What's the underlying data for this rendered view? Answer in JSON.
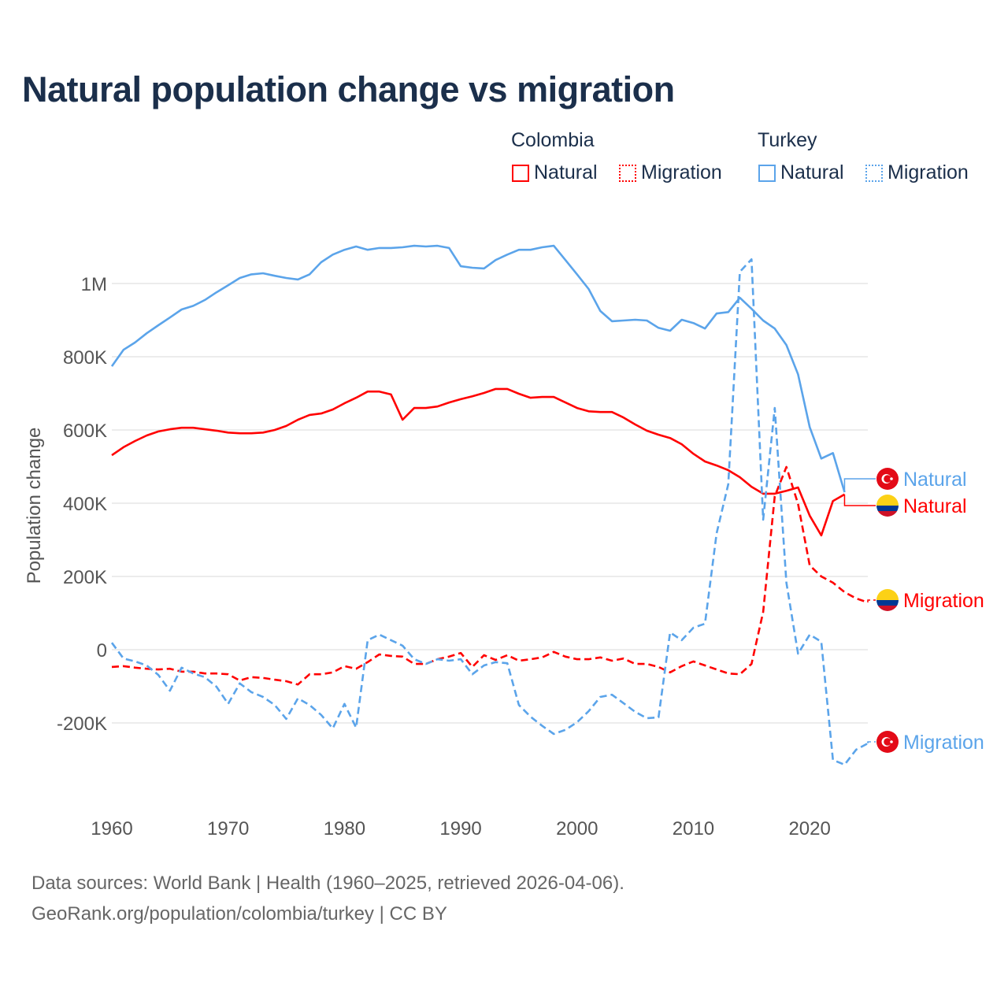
{
  "title": "Natural population change vs migration",
  "legend": {
    "groups": [
      {
        "name": "Colombia",
        "items": [
          {
            "label": "Natural",
            "style": "solid"
          },
          {
            "label": "Migration",
            "style": "dotted"
          }
        ],
        "color": "#ff0000"
      },
      {
        "name": "Turkey",
        "items": [
          {
            "label": "Natural",
            "style": "solid"
          },
          {
            "label": "Migration",
            "style": "dotted"
          }
        ],
        "color": "#5ba4ea"
      }
    ]
  },
  "footer": {
    "line1": "Data sources: World Bank | Health (1960–2025, retrieved 2026-04-06).",
    "line2": "GeoRank.org/population/colombia/turkey | CC BY"
  },
  "chart_data": {
    "type": "line",
    "title": "Natural population change vs migration",
    "xlabel": "",
    "ylabel": "Population change",
    "xlim": [
      1960,
      2025
    ],
    "ylim": [
      -400000,
      1150000
    ],
    "x_ticks": [
      1960,
      1970,
      1980,
      1990,
      2000,
      2010,
      2020
    ],
    "x_tick_labels": [
      "1960",
      "1970",
      "1980",
      "1990",
      "2000",
      "2010",
      "2020"
    ],
    "y_ticks": [
      -200000,
      0,
      200000,
      400000,
      600000,
      800000,
      1000000
    ],
    "y_tick_labels": [
      "-200K",
      "0",
      "200K",
      "400K",
      "600K",
      "800K",
      "1M"
    ],
    "grid": true,
    "legend_position": "top-right",
    "series": [
      {
        "name": "Turkey Natural",
        "country": "Turkey",
        "label": "Natural",
        "color": "#5ba4ea",
        "dash": false,
        "flag": "turkey",
        "start_year": 1960,
        "values": [
          774000,
          819000,
          839000,
          864000,
          886000,
          907000,
          929000,
          939000,
          955000,
          976000,
          995000,
          1015000,
          1025000,
          1028000,
          1021000,
          1015000,
          1011000,
          1025000,
          1058000,
          1079000,
          1092000,
          1101000,
          1092000,
          1097000,
          1097000,
          1099000,
          1103000,
          1101000,
          1103000,
          1097000,
          1047000,
          1043000,
          1041000,
          1064000,
          1079000,
          1092000,
          1092000,
          1099000,
          1103000,
          1064000,
          1025000,
          985000,
          925000,
          897000,
          899000,
          901000,
          899000,
          879000,
          871000,
          901000,
          892000,
          877000,
          918000,
          922000,
          961000,
          931000,
          899000,
          877000,
          832000,
          752000,
          608000,
          522000,
          537000,
          430000
        ]
      },
      {
        "name": "Colombia Natural",
        "country": "Colombia",
        "label": "Natural",
        "color": "#ff0000",
        "dash": false,
        "flag": "colombia",
        "start_year": 1960,
        "values": [
          531000,
          553000,
          570000,
          585000,
          596000,
          602000,
          606000,
          606000,
          602000,
          598000,
          593000,
          591000,
          591000,
          593000,
          600000,
          611000,
          628000,
          641000,
          645000,
          656000,
          673000,
          688000,
          705000,
          705000,
          697000,
          628000,
          660000,
          660000,
          664000,
          675000,
          684000,
          692000,
          701000,
          712000,
          712000,
          699000,
          688000,
          690000,
          690000,
          675000,
          660000,
          651000,
          649000,
          649000,
          634000,
          615000,
          598000,
          587000,
          578000,
          561000,
          535000,
          514000,
          503000,
          490000,
          471000,
          445000,
          426000,
          426000,
          434000,
          443000,
          366000,
          312000,
          406000,
          424000
        ]
      },
      {
        "name": "Colombia Migration",
        "country": "Colombia",
        "label": "Migration",
        "color": "#ff0000",
        "dash": true,
        "flag": "colombia",
        "start_year": 1960,
        "values": [
          -47000,
          -45000,
          -49000,
          -52000,
          -54000,
          -52000,
          -60000,
          -60000,
          -65000,
          -65000,
          -67000,
          -84000,
          -75000,
          -77000,
          -82000,
          -86000,
          -95000,
          -67000,
          -67000,
          -62000,
          -45000,
          -52000,
          -34000,
          -13000,
          -17000,
          -19000,
          -39000,
          -39000,
          -26000,
          -19000,
          -9000,
          -47000,
          -15000,
          -28000,
          -15000,
          -30000,
          -26000,
          -21000,
          -6000,
          -19000,
          -26000,
          -26000,
          -21000,
          -30000,
          -24000,
          -39000,
          -39000,
          -47000,
          -62000,
          -45000,
          -32000,
          -43000,
          -54000,
          -65000,
          -67000,
          -39000,
          103000,
          419000,
          499000,
          398000,
          230000,
          200000,
          183000,
          157000,
          140000,
          129000
        ]
      },
      {
        "name": "Turkey Migration",
        "country": "Turkey",
        "label": "Migration",
        "color": "#5ba4ea",
        "dash": true,
        "flag": "turkey",
        "start_year": 1960,
        "values": [
          19000,
          -24000,
          -32000,
          -43000,
          -69000,
          -112000,
          -49000,
          -65000,
          -75000,
          -101000,
          -148000,
          -92000,
          -116000,
          -129000,
          -151000,
          -189000,
          -133000,
          -151000,
          -178000,
          -215000,
          -148000,
          -213000,
          26000,
          41000,
          26000,
          11000,
          -26000,
          -39000,
          -26000,
          -30000,
          -26000,
          -67000,
          -43000,
          -34000,
          -37000,
          -151000,
          -183000,
          -208000,
          -230000,
          -219000,
          -198000,
          -168000,
          -129000,
          -123000,
          -146000,
          -170000,
          -187000,
          -185000,
          47000,
          26000,
          60000,
          71000,
          318000,
          452000,
          1032000,
          1066000,
          355000,
          660000,
          183000,
          -11000,
          41000,
          22000,
          -301000,
          -314000,
          -273000,
          -256000
        ]
      }
    ]
  }
}
